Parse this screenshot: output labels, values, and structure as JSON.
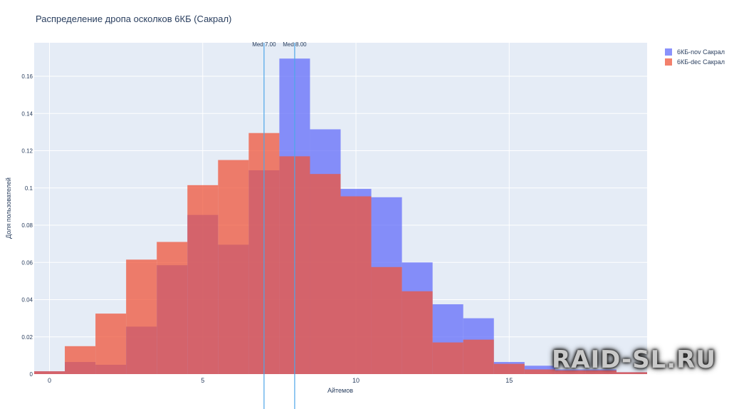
{
  "title": "Распределение дропа осколков 6КБ (Сакрал)",
  "watermark": "RAID-SL.RU",
  "chart_data": {
    "type": "histogram",
    "title": "Распределение дропа осколков 6КБ (Сакрал)",
    "xlabel": "Айтемов",
    "ylabel": "Доля пользователей",
    "xlim": [
      -0.5,
      19.5
    ],
    "ylim": [
      0,
      0.178
    ],
    "x_ticks": [
      0,
      5,
      10,
      15
    ],
    "y_ticks": [
      0,
      0.02,
      0.04,
      0.06,
      0.08,
      0.1,
      0.12,
      0.14,
      0.16
    ],
    "y_tick_labels": [
      "0",
      "0.02",
      "0.04",
      "0.06",
      "0.08",
      "0.1",
      "0.12",
      "0.14",
      "0.16"
    ],
    "grid": true,
    "legend_position": "top-right",
    "bins": [
      0,
      1,
      2,
      3,
      4,
      5,
      6,
      7,
      8,
      9,
      10,
      11,
      12,
      13,
      14,
      15,
      16,
      17,
      18,
      19
    ],
    "series": [
      {
        "name": "6КБ-nov Сакрал",
        "color": "#636efa",
        "values": [
          0.0015,
          0.0065,
          0.005,
          0.0255,
          0.0585,
          0.0855,
          0.0695,
          0.1095,
          0.1695,
          0.1315,
          0.0995,
          0.095,
          0.06,
          0.0375,
          0.03,
          0.0065,
          0.0045,
          0.0025,
          0.0025,
          0.001
        ]
      },
      {
        "name": "6КБ-dec Сакрал",
        "color": "#ef553b",
        "values": [
          0.0015,
          0.015,
          0.0325,
          0.0615,
          0.071,
          0.1015,
          0.115,
          0.1295,
          0.117,
          0.1075,
          0.0955,
          0.0575,
          0.0445,
          0.017,
          0.0185,
          0.0055,
          0.0025,
          0.002,
          0.002,
          0.001
        ]
      }
    ],
    "medians": [
      {
        "value": 7.0,
        "label": "Med 7.00"
      },
      {
        "value": 8.0,
        "label": "Med 8.00"
      }
    ]
  }
}
